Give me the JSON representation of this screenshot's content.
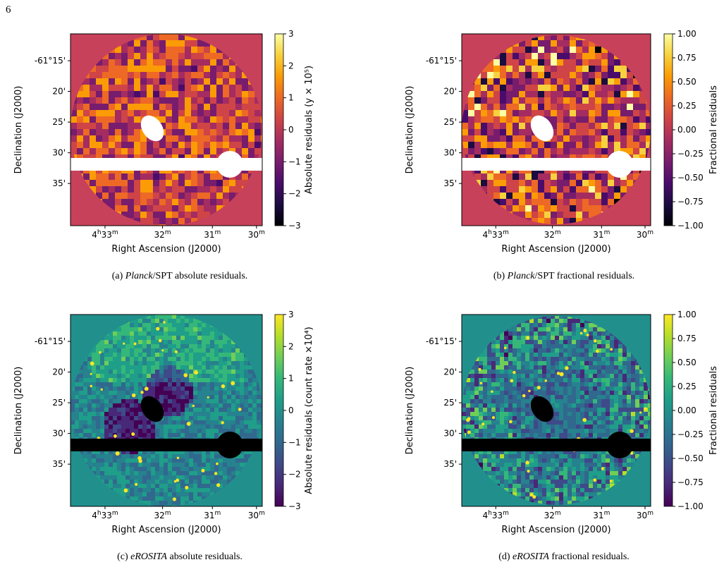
{
  "page_number": "6",
  "panels": [
    {
      "id": "a",
      "caption_prefix": "(a) ",
      "caption_italic": "Planck",
      "caption_rest": "/SPT absolute residuals.",
      "xlabel": "Right Ascension (J2000)",
      "ylabel": "Declination (J2000)",
      "xticks": [
        "4h33m",
        "32m",
        "31m",
        "30m"
      ],
      "yticks": [
        "-61°15'",
        "20'",
        "25'",
        "30'",
        "35'"
      ],
      "colorbar_label": "Absolute residuals (y × 10⁵)",
      "colorbar_ticks": [
        "3",
        "2",
        "1",
        "0",
        "−1",
        "−2",
        "−3"
      ],
      "colormap": "inferno"
    },
    {
      "id": "b",
      "caption_prefix": "(b) ",
      "caption_italic": "Planck",
      "caption_rest": "/SPT fractional residuals.",
      "xlabel": "Right Ascension (J2000)",
      "ylabel": "Declination (J2000)",
      "xticks": [
        "4h33m",
        "32m",
        "31m",
        "30m"
      ],
      "yticks": [
        "-61°15'",
        "20'",
        "25'",
        "30'",
        "35'"
      ],
      "colorbar_label": "Fractional residuals",
      "colorbar_ticks": [
        "1.00",
        "0.75",
        "0.50",
        "0.25",
        "0.00",
        "−0.25",
        "−0.50",
        "−0.75",
        "−1.00"
      ],
      "colormap": "inferno"
    },
    {
      "id": "c",
      "caption_prefix": "(c) ",
      "caption_italic": "eROSITA",
      "caption_rest": " absolute residuals.",
      "xlabel": "Right Ascension (J2000)",
      "ylabel": "Declination (J2000)",
      "xticks": [
        "4h33m",
        "32m",
        "31m",
        "30m"
      ],
      "yticks": [
        "-61°15'",
        "20'",
        "25'",
        "30'",
        "35'"
      ],
      "colorbar_label": "Absolute residuals (count rate ×10⁴)",
      "colorbar_ticks": [
        "3",
        "2",
        "1",
        "0",
        "−1",
        "−2",
        "−3"
      ],
      "colormap": "viridis"
    },
    {
      "id": "d",
      "caption_prefix": "(d) ",
      "caption_italic": "eROSITA",
      "caption_rest": " fractional residuals.",
      "xlabel": "Right Ascension (J2000)",
      "ylabel": "Declination (J2000)",
      "xticks": [
        "4h33m",
        "32m",
        "31m",
        "30m"
      ],
      "yticks": [
        "-61°15'",
        "20'",
        "25'",
        "30'",
        "35'"
      ],
      "colorbar_label": "Fractional residuals",
      "colorbar_ticks": [
        "1.00",
        "0.75",
        "0.50",
        "0.25",
        "0.00",
        "−0.25",
        "−0.50",
        "−0.75",
        "−1.00"
      ],
      "colormap": "viridis"
    }
  ],
  "colors": {
    "inferno_background": "#c8415a",
    "inferno_mask": "#ffffff",
    "viridis_background": "#21908d",
    "viridis_mask": "#000000"
  }
}
